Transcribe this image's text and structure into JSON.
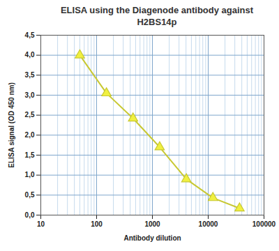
{
  "chart_data": {
    "type": "line",
    "title": "ELISA using the Diagenode antibody against\nH2BS14p",
    "x_label": "Antibody dilution",
    "y_label": "ELISA signal (OD 450 nm)",
    "x": [
      50,
      150,
      450,
      1350,
      4050,
      12150,
      36450
    ],
    "values": [
      4.0,
      3.05,
      2.42,
      1.7,
      0.9,
      0.43,
      0.17
    ],
    "color": "#c8c832",
    "marker": "triangle",
    "log": "x",
    "grid": true,
    "xlim": [
      10,
      100000
    ],
    "xticks": [
      10,
      100,
      1000,
      10000,
      100000
    ],
    "ylim": [
      0,
      4.5
    ],
    "yticks": [
      {
        "value": 0,
        "label": "0,0"
      },
      {
        "value": 0.5,
        "label": "0,5"
      },
      {
        "value": 1,
        "label": "1,0"
      },
      {
        "value": 1.5,
        "label": "1,5"
      },
      {
        "value": 2,
        "label": "2,0"
      },
      {
        "value": 2.5,
        "label": "2,5"
      },
      {
        "value": 3,
        "label": "3,0"
      },
      {
        "value": 3.5,
        "label": "3,5"
      },
      {
        "value": 4,
        "label": "4,0"
      },
      {
        "value": 4.5,
        "label": "4,5"
      }
    ]
  }
}
